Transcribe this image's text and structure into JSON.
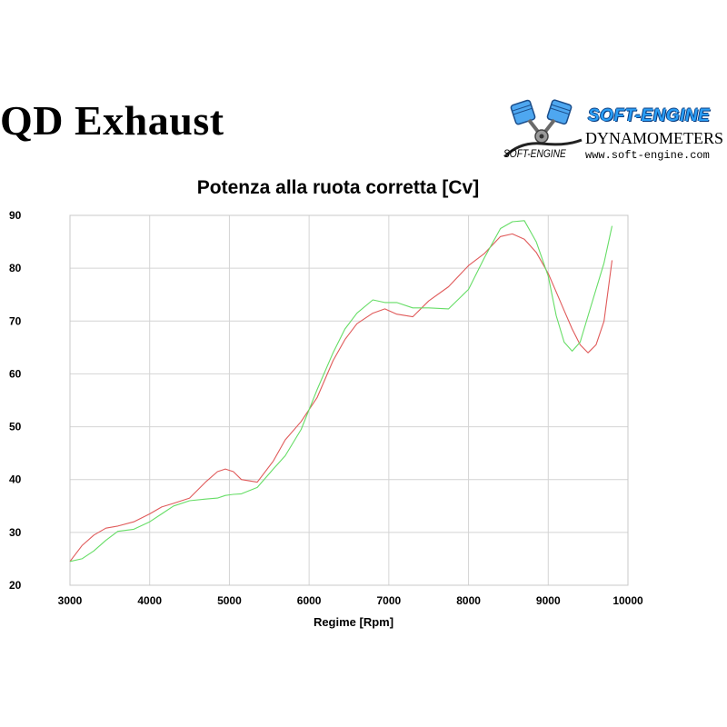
{
  "header": {
    "title": "QD Exhaust",
    "logo": {
      "brand": "SOFT-ENGINE",
      "sub": "DYNAMOMETERS",
      "url": "www.soft-engine.com",
      "mark_text": "SOFT-ENGINE"
    }
  },
  "chart_data": {
    "type": "line",
    "title": "Potenza alla ruota corretta [Cv]",
    "xlabel": "Regime [Rpm]",
    "ylabel": "",
    "xlim": [
      3000,
      10000
    ],
    "ylim": [
      20,
      90
    ],
    "xticks": [
      3000,
      4000,
      5000,
      6000,
      7000,
      8000,
      9000,
      10000
    ],
    "yticks": [
      20,
      30,
      40,
      50,
      60,
      70,
      80,
      90
    ],
    "grid": true,
    "legend": "none",
    "series": [
      {
        "color": "#e05a5a",
        "x": [
          3000,
          3150,
          3300,
          3450,
          3600,
          3800,
          4000,
          4150,
          4300,
          4500,
          4700,
          4850,
          4950,
          5050,
          5150,
          5350,
          5550,
          5700,
          5900,
          6100,
          6300,
          6450,
          6600,
          6800,
          6950,
          7100,
          7300,
          7500,
          7750,
          8000,
          8200,
          8400,
          8550,
          8700,
          8850,
          9000,
          9100,
          9200,
          9300,
          9400,
          9500,
          9600,
          9700,
          9800
        ],
        "y": [
          24.5,
          27.5,
          29.5,
          30.8,
          31.2,
          32.0,
          33.5,
          34.8,
          35.5,
          36.5,
          39.5,
          41.5,
          42.0,
          41.5,
          40.0,
          39.5,
          43.5,
          47.5,
          51.0,
          55.5,
          62.5,
          66.5,
          69.5,
          71.5,
          72.3,
          71.3,
          70.8,
          73.8,
          76.5,
          80.5,
          82.8,
          86.0,
          86.5,
          85.5,
          83.0,
          79.0,
          75.5,
          72.0,
          68.5,
          65.5,
          64.0,
          65.5,
          70.0,
          81.5
        ]
      },
      {
        "color": "#66dd66",
        "x": [
          3000,
          3150,
          3300,
          3450,
          3600,
          3800,
          4000,
          4150,
          4300,
          4500,
          4700,
          4850,
          4950,
          5050,
          5150,
          5350,
          5550,
          5700,
          5900,
          6100,
          6300,
          6450,
          6600,
          6800,
          6950,
          7100,
          7300,
          7500,
          7750,
          8000,
          8200,
          8400,
          8550,
          8700,
          8850,
          9000,
          9100,
          9200,
          9300,
          9400,
          9500,
          9600,
          9700,
          9800
        ],
        "y": [
          24.5,
          25.0,
          26.5,
          28.5,
          30.2,
          30.6,
          32.0,
          33.5,
          35.0,
          36.0,
          36.3,
          36.5,
          37.0,
          37.2,
          37.3,
          38.5,
          42.0,
          44.5,
          49.5,
          57.0,
          64.0,
          68.5,
          71.5,
          74.0,
          73.5,
          73.5,
          72.5,
          72.5,
          72.3,
          76.0,
          82.0,
          87.5,
          88.8,
          89.0,
          85.0,
          78.5,
          71.0,
          66.0,
          64.3,
          66.0,
          71.0,
          76.0,
          81.0,
          88.0
        ]
      }
    ]
  }
}
